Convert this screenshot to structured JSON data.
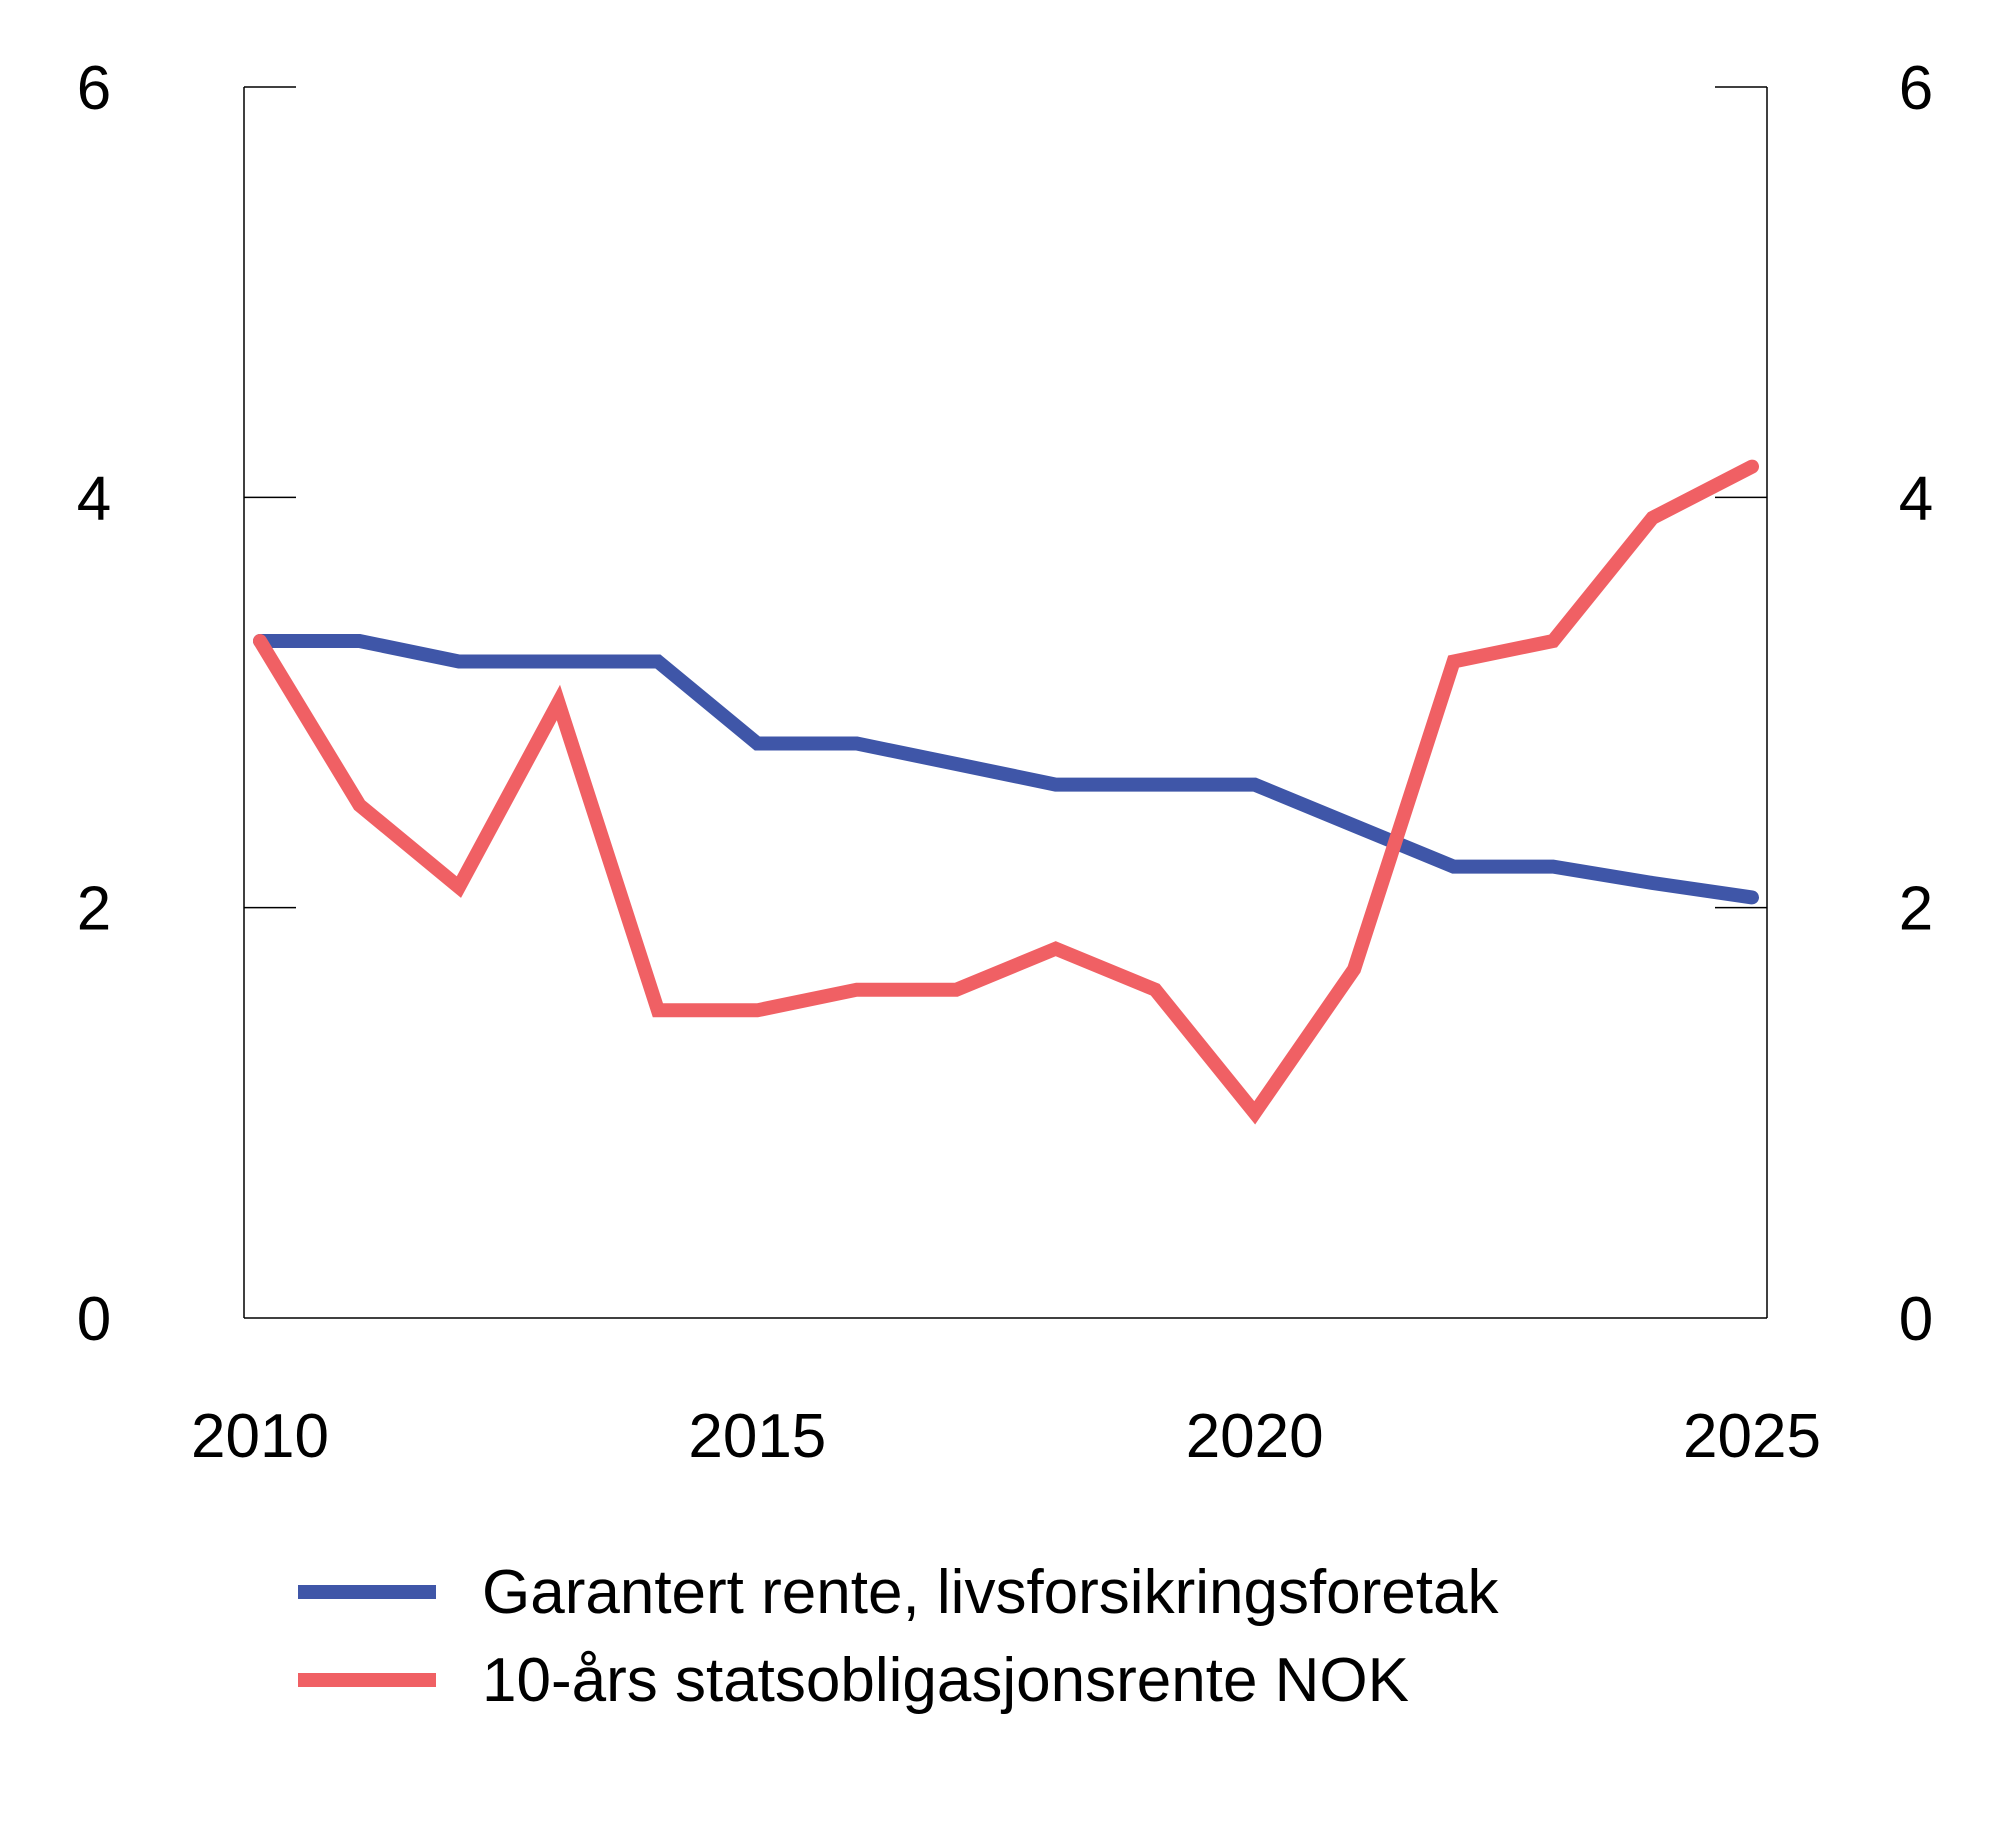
{
  "chart_data": {
    "type": "line",
    "title": "",
    "xlabel": "",
    "ylabel": "",
    "x": [
      2010,
      2011,
      2012,
      2013,
      2014,
      2015,
      2016,
      2017,
      2018,
      2019,
      2020,
      2021,
      2022,
      2023,
      2024,
      2025
    ],
    "xticks": [
      "2010",
      "2015",
      "2020",
      "2025"
    ],
    "xlim": [
      2010,
      2025
    ],
    "ylim": [
      0,
      6
    ],
    "yticks_left": [
      "0",
      "2",
      "4",
      "6"
    ],
    "yticks_right": [
      "0",
      "2",
      "4",
      "6"
    ],
    "grid": false,
    "legend_placement": "bottom",
    "series": [
      {
        "name": "Garantert rente, livsforsikringsforetak",
        "color": "#3f56a8",
        "values": [
          3.3,
          3.3,
          3.2,
          3.2,
          3.2,
          2.8,
          2.8,
          2.7,
          2.6,
          2.6,
          2.6,
          2.4,
          2.2,
          2.2,
          2.12,
          2.05
        ]
      },
      {
        "name": "10-års statsobligasjonsrente NOK",
        "color": "#f06064",
        "values": [
          3.3,
          2.5,
          2.1,
          3.0,
          1.5,
          1.5,
          1.6,
          1.6,
          1.8,
          1.6,
          1.0,
          1.7,
          3.2,
          3.3,
          3.9,
          4.15
        ]
      }
    ]
  }
}
